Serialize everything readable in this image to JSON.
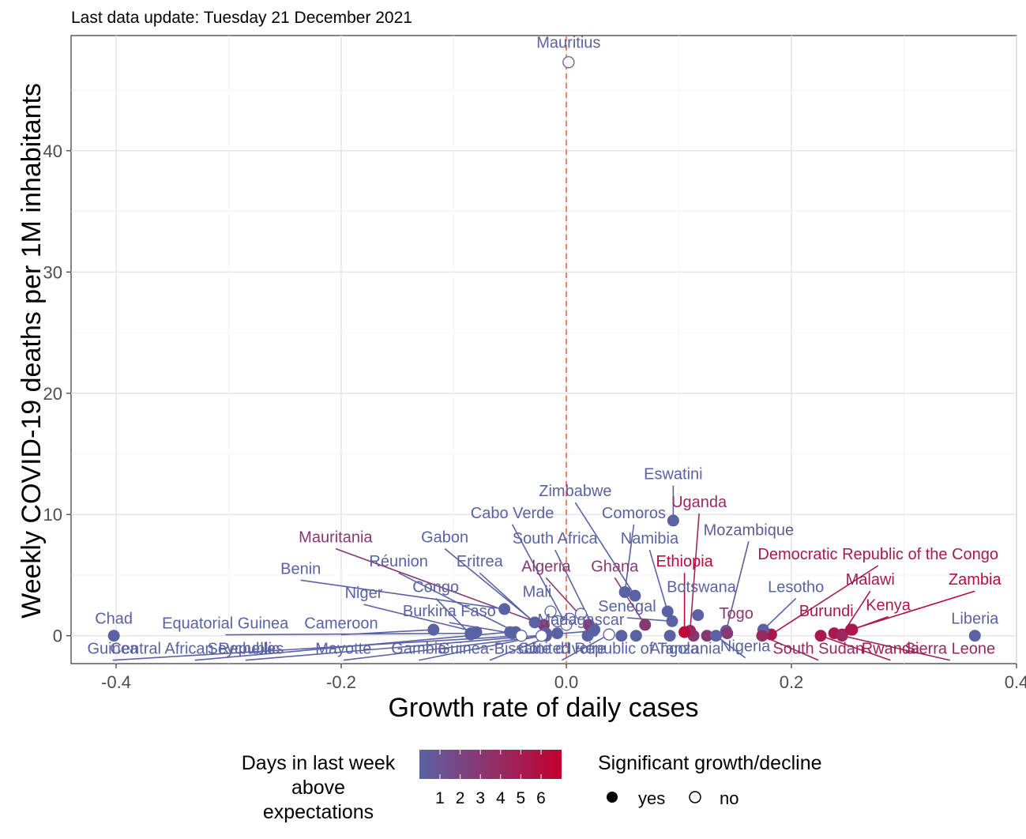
{
  "subtitle": "Last data update: Tuesday 21 December 2021",
  "chart_data": {
    "type": "scatter",
    "xlabel": "Growth rate of daily cases",
    "ylabel": "Weekly COVID-19 deaths per 1M inhabitants",
    "xlim": [
      -0.44,
      0.4
    ],
    "ylim": [
      -2.3,
      49.5
    ],
    "xticks": [
      -0.4,
      -0.2,
      0.0,
      0.2,
      0.4
    ],
    "xtick_labels": [
      "-0.4",
      "-0.2",
      "0.0",
      "0.2",
      "0.4"
    ],
    "yticks": [
      0,
      10,
      20,
      30,
      40
    ],
    "ytick_labels": [
      "0",
      "10",
      "20",
      "30",
      "40"
    ],
    "grid": true,
    "reference_line_x": 0,
    "colors": {
      "low": "#5b62a3",
      "high": "#c4002f",
      "reference": "#f08070"
    },
    "legend": {
      "color_title": [
        "Days in last week",
        "above",
        "expectations"
      ],
      "color_ticks": [
        "1",
        "2",
        "3",
        "4",
        "5",
        "6"
      ],
      "shape_title": "Significant growth/decline",
      "shape_yes": "yes",
      "shape_no": "no"
    },
    "points": [
      {
        "label": "Mauritius",
        "x": 0.002,
        "y": 47.3,
        "days": 0,
        "sig": false,
        "lx": 0.002,
        "ly": 48.5
      },
      {
        "label": "Eswatini",
        "x": 0.095,
        "y": 9.5,
        "days": 0,
        "sig": true,
        "lx": 0.095,
        "ly": 12.9
      },
      {
        "label": "Uganda",
        "x": 0.11,
        "y": 0.4,
        "days": 4,
        "sig": true,
        "lx": 0.118,
        "ly": 10.6
      },
      {
        "label": "Zimbabwe",
        "x": 0.061,
        "y": 3.3,
        "days": 0,
        "sig": true,
        "lx": 0.008,
        "ly": 11.5
      },
      {
        "label": "Cabo Verde",
        "x": 0.0,
        "y": 0.9,
        "days": 0,
        "sig": false,
        "lx": -0.048,
        "ly": 9.7
      },
      {
        "label": "Comoros",
        "x": 0.052,
        "y": 3.6,
        "days": 0,
        "sig": true,
        "lx": 0.06,
        "ly": 9.7
      },
      {
        "label": "Mozambique",
        "x": 0.142,
        "y": 0.4,
        "days": 1,
        "sig": true,
        "lx": 0.162,
        "ly": 8.3
      },
      {
        "label": "Mauritania",
        "x": -0.02,
        "y": 0.9,
        "days": 3,
        "sig": true,
        "lx": -0.205,
        "ly": 7.7
      },
      {
        "label": "Gabon",
        "x": -0.028,
        "y": 1.1,
        "days": 0,
        "sig": true,
        "lx": -0.108,
        "ly": 7.7
      },
      {
        "label": "South Africa",
        "x": 0.025,
        "y": 0.5,
        "days": 0,
        "sig": true,
        "lx": -0.01,
        "ly": 7.6
      },
      {
        "label": "Namibia",
        "x": 0.09,
        "y": 2.0,
        "days": 0,
        "sig": true,
        "lx": 0.074,
        "ly": 7.6
      },
      {
        "label": "Ethiopia",
        "x": 0.105,
        "y": 0.3,
        "days": 6,
        "sig": true,
        "lx": 0.105,
        "ly": 5.7
      },
      {
        "label": "Democratic Republic of the Congo",
        "x": 0.182,
        "y": 0.1,
        "days": 5,
        "sig": true,
        "lx": 0.277,
        "ly": 6.3
      },
      {
        "label": "Réunion",
        "x": -0.045,
        "y": 0.3,
        "days": 0,
        "sig": true,
        "lx": -0.149,
        "ly": 5.7
      },
      {
        "label": "Eritrea",
        "x": -0.018,
        "y": 0.2,
        "days": 0,
        "sig": true,
        "lx": -0.077,
        "ly": 5.7
      },
      {
        "label": "Algeria",
        "x": 0.02,
        "y": 0.9,
        "days": 3,
        "sig": true,
        "lx": -0.018,
        "ly": 5.3
      },
      {
        "label": "Ghana",
        "x": 0.07,
        "y": 0.9,
        "days": 3,
        "sig": true,
        "lx": 0.043,
        "ly": 5.3
      },
      {
        "label": "Benin",
        "x": -0.055,
        "y": 2.2,
        "days": 0,
        "sig": true,
        "lx": -0.236,
        "ly": 5.1
      },
      {
        "label": "Malawi",
        "x": 0.245,
        "y": 0.1,
        "days": 5,
        "sig": true,
        "lx": 0.27,
        "ly": 4.2
      },
      {
        "label": "Zambia",
        "x": 0.253,
        "y": 0.5,
        "days": 6,
        "sig": true,
        "lx": 0.363,
        "ly": 4.2
      },
      {
        "label": "Botswana",
        "x": 0.117,
        "y": 1.7,
        "days": 0,
        "sig": true,
        "lx": 0.12,
        "ly": 3.6
      },
      {
        "label": "Lesotho",
        "x": 0.175,
        "y": 0.5,
        "days": 0,
        "sig": true,
        "lx": 0.204,
        "ly": 3.6
      },
      {
        "label": "Congo",
        "x": -0.085,
        "y": 0.1,
        "days": 0,
        "sig": true,
        "lx": -0.116,
        "ly": 3.6
      },
      {
        "label": "Niger",
        "x": -0.08,
        "y": 0.3,
        "days": 0,
        "sig": true,
        "lx": -0.18,
        "ly": 3.1
      },
      {
        "label": "Mali",
        "x": -0.014,
        "y": 2.0,
        "days": 0,
        "sig": false,
        "lx": -0.026,
        "ly": 3.2
      },
      {
        "label": "Senegal",
        "x": 0.094,
        "y": 1.2,
        "days": 0,
        "sig": true,
        "lx": 0.054,
        "ly": 2.0
      },
      {
        "label": "Kenya",
        "x": 0.254,
        "y": 0.5,
        "days": 5,
        "sig": true,
        "lx": 0.286,
        "ly": 2.1
      },
      {
        "label": "Burkina Faso",
        "x": -0.048,
        "y": 0.2,
        "days": 0,
        "sig": true,
        "lx": -0.104,
        "ly": 1.6
      },
      {
        "label": "Togo",
        "x": 0.143,
        "y": 0.2,
        "days": 3,
        "sig": true,
        "lx": 0.151,
        "ly": 1.4
      },
      {
        "label": "Burundi",
        "x": 0.238,
        "y": 0.2,
        "days": 5,
        "sig": true,
        "lx": 0.231,
        "ly": 1.6
      },
      {
        "label": "Liberia",
        "x": 0.363,
        "y": 0.0,
        "days": 0,
        "sig": true,
        "lx": 0.363,
        "ly": 1.0
      },
      {
        "label": "Madagascar",
        "x": 0.013,
        "y": 1.8,
        "days": 0,
        "sig": false,
        "lx": 0.013,
        "ly": 0.9
      },
      {
        "label": "Chad",
        "x": -0.402,
        "y": 0.0,
        "days": 0,
        "sig": true,
        "lx": -0.402,
        "ly": 1.0
      },
      {
        "label": "Equatorial Guinea",
        "x": -0.085,
        "y": 0.2,
        "days": 0,
        "sig": true,
        "lx": -0.303,
        "ly": 0.6
      },
      {
        "label": "Cameroon",
        "x": -0.118,
        "y": 0.5,
        "days": 0,
        "sig": true,
        "lx": -0.2,
        "ly": 0.6
      },
      {
        "label": "Central African Republic",
        "x": -0.05,
        "y": 0.3,
        "days": 0,
        "sig": true,
        "lx": -0.33,
        "ly": -1.5
      },
      {
        "label": "Guinea",
        "x": -0.04,
        "y": 0.0,
        "days": 0,
        "sig": false,
        "lx": -0.403,
        "ly": -1.5
      },
      {
        "label": "Seychelles",
        "x": 0.024,
        "y": 0.4,
        "days": 0,
        "sig": true,
        "lx": -0.285,
        "ly": -1.5
      },
      {
        "label": "Mayotte",
        "x": -0.018,
        "y": 0.0,
        "days": 0,
        "sig": true,
        "lx": -0.198,
        "ly": -1.5
      },
      {
        "label": "Gambia",
        "x": -0.022,
        "y": 0.0,
        "days": 0,
        "sig": false,
        "lx": -0.131,
        "ly": -1.5
      },
      {
        "label": "Guinea-Bissau",
        "x": -0.008,
        "y": 0.2,
        "days": 0,
        "sig": true,
        "lx": -0.068,
        "ly": -1.5
      },
      {
        "label": "Côte d'Ivoire",
        "x": 0.038,
        "y": 0.1,
        "days": 0,
        "sig": false,
        "lx": -0.004,
        "ly": -1.5
      },
      {
        "label": "United Republic of Tanzania",
        "x": 0.062,
        "y": 0.0,
        "days": 0,
        "sig": true,
        "lx": 0.05,
        "ly": -1.5
      },
      {
        "label": "Angola",
        "x": 0.092,
        "y": 0.0,
        "days": 0,
        "sig": true,
        "lx": 0.096,
        "ly": -1.5
      },
      {
        "label": "Nigeria",
        "x": 0.133,
        "y": 0.0,
        "days": 0,
        "sig": true,
        "lx": 0.159,
        "ly": -1.3
      },
      {
        "label": "South Sudan",
        "x": 0.174,
        "y": 0.0,
        "days": 4,
        "sig": true,
        "lx": 0.224,
        "ly": -1.5
      },
      {
        "label": "Rwanda",
        "x": 0.226,
        "y": 0.0,
        "days": 5,
        "sig": true,
        "lx": 0.288,
        "ly": -1.5
      },
      {
        "label": "Sierra Leone",
        "x": 0.245,
        "y": 0.0,
        "days": 4,
        "sig": true,
        "lx": 0.341,
        "ly": -1.5
      }
    ],
    "extra_points": [
      {
        "x": 0.049,
        "y": 0.0,
        "days": 0,
        "sig": true
      },
      {
        "x": 0.019,
        "y": 0.0,
        "days": 0,
        "sig": true
      },
      {
        "x": 0.113,
        "y": 0.0,
        "days": 3,
        "sig": true
      },
      {
        "x": 0.125,
        "y": 0.0,
        "days": 3,
        "sig": true
      },
      {
        "x": -0.008,
        "y": 1.2,
        "days": 0,
        "sig": false
      },
      {
        "x": 0.003,
        "y": 1.4,
        "days": 0,
        "sig": false
      }
    ]
  }
}
